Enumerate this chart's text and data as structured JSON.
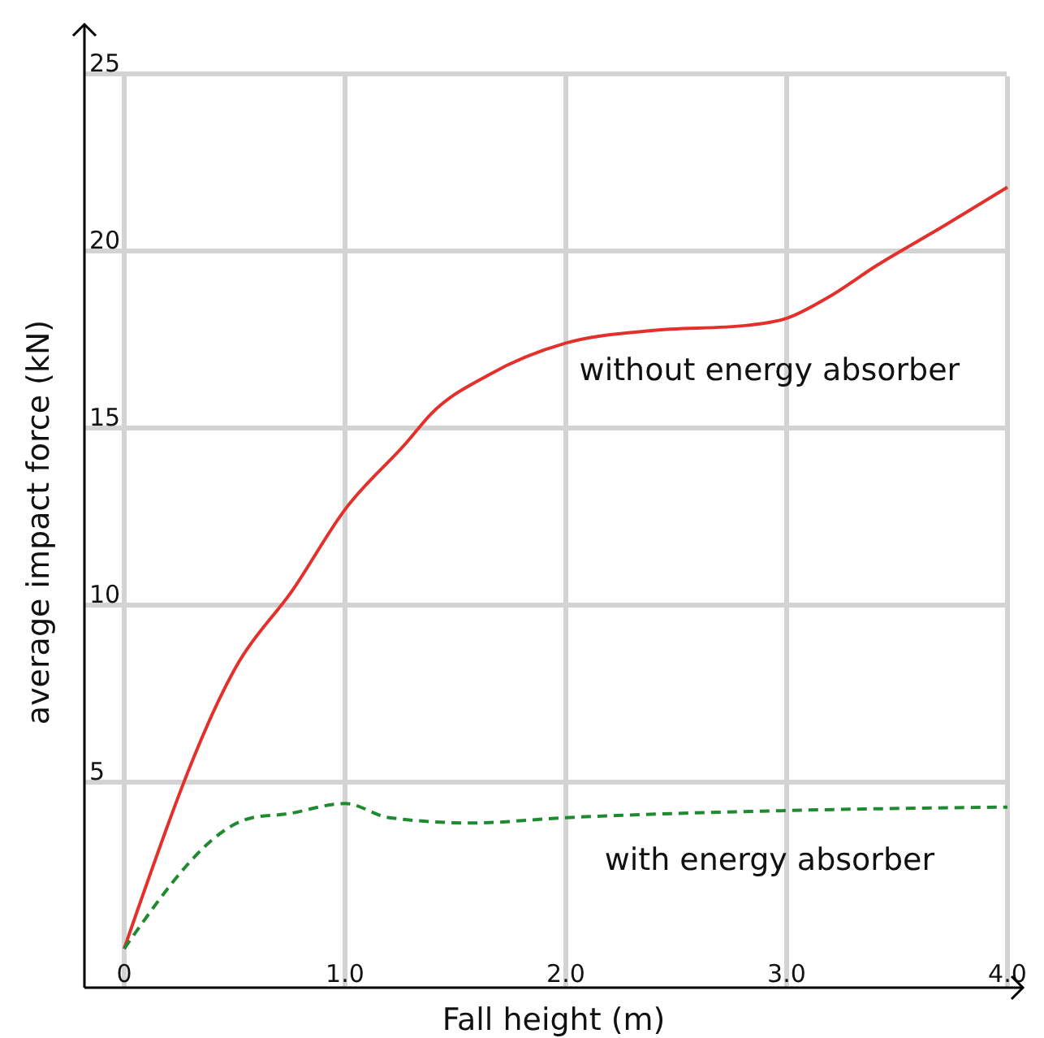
{
  "chart_data": {
    "type": "line",
    "xlabel": "Fall height (m)",
    "ylabel": "average impact force (kN)",
    "xlim": [
      -0.18,
      4.07
    ],
    "ylim": [
      -0.8,
      26.4
    ],
    "xticks": [
      0,
      {
        "value": 1,
        "label": "1.0"
      },
      {
        "value": 2,
        "label": "2.0"
      },
      {
        "value": 3,
        "label": "3.0"
      },
      {
        "value": 4,
        "label": "4.0"
      }
    ],
    "yticks": [
      5,
      10,
      15,
      20,
      25
    ],
    "grid": true,
    "series": [
      {
        "name": "without energy absorber",
        "color": "#e4302a",
        "line_style": "solid",
        "x": [
          0,
          0.52,
          0.76,
          1.0,
          1.28,
          1.39,
          1.65,
          2.0,
          2.38,
          2.82,
          3.0,
          3.19,
          3.41,
          3.71,
          4.0
        ],
        "values": [
          0.3,
          8.4,
          10.4,
          12.7,
          14.6,
          15.4,
          16.5,
          17.4,
          17.75,
          17.9,
          18.1,
          18.7,
          19.6,
          20.7,
          21.8
        ]
      },
      {
        "name": "with energy absorber",
        "color": "#1f8a30",
        "line_style": "dashed",
        "x": [
          0,
          0.58,
          0.73,
          1.0,
          1.2,
          1.57,
          2.0,
          3.0,
          4.0
        ],
        "values": [
          0.3,
          4.0,
          4.1,
          4.4,
          4.0,
          3.85,
          4.0,
          4.2,
          4.3
        ]
      }
    ]
  }
}
